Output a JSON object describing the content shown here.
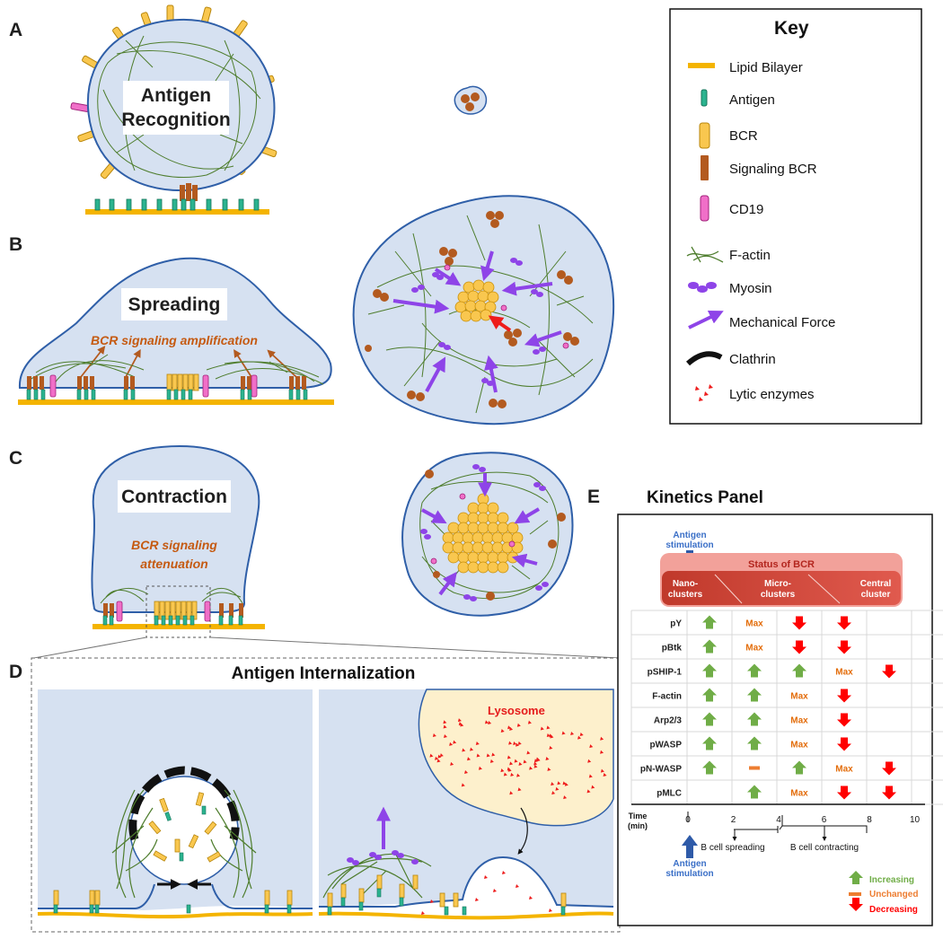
{
  "panels": {
    "a": {
      "letter": "A",
      "title_line1": "Antigen",
      "title_line2": "Recognition"
    },
    "b": {
      "letter": "B",
      "title": "Spreading",
      "subtitle": "BCR signaling amplification"
    },
    "c": {
      "letter": "C",
      "title": "Contraction",
      "subtitle_line1": "BCR signaling",
      "subtitle_line2": "attenuation"
    },
    "d": {
      "letter": "D",
      "title": "Antigen Internalization",
      "lysosome_label": "Lysosome"
    },
    "e": {
      "letter": "E",
      "title": "Kinetics Panel"
    }
  },
  "key": {
    "title": "Key",
    "items": [
      {
        "label": "Lipid Bilayer",
        "icon": "lipid-bilayer-icon"
      },
      {
        "label": "Antigen",
        "icon": "antigen-icon"
      },
      {
        "label": "BCR",
        "icon": "bcr-icon"
      },
      {
        "label": "Signaling BCR",
        "icon": "signaling-bcr-icon"
      },
      {
        "label": "CD19",
        "icon": "cd19-icon"
      },
      {
        "label": "F-actin",
        "icon": "f-actin-icon"
      },
      {
        "label": "Myosin",
        "icon": "myosin-icon"
      },
      {
        "label": "Mechanical Force",
        "icon": "mechanical-force-icon"
      },
      {
        "label": "Clathrin",
        "icon": "clathrin-icon"
      },
      {
        "label": "Lytic enzymes",
        "icon": "lytic-enzymes-icon"
      }
    ]
  },
  "kinetics": {
    "stim_top_line1": "Antigen",
    "stim_top_line2": "stimulation",
    "status_title": "Status of BCR",
    "stage1_line1": "Nano-",
    "stage1_line2": "clusters",
    "stage2_line1": "Micro-",
    "stage2_line2": "clusters",
    "stage3_line1": "Central",
    "stage3_line2": "cluster",
    "rows": [
      {
        "label": "pY",
        "marks": [
          "up",
          "max",
          "down",
          "down",
          "",
          ""
        ]
      },
      {
        "label": "pBtk",
        "marks": [
          "up",
          "max",
          "down",
          "down",
          "",
          ""
        ]
      },
      {
        "label": "pSHIP-1",
        "marks": [
          "up",
          "up",
          "up",
          "max",
          "down",
          ""
        ]
      },
      {
        "label": "F-actin",
        "marks": [
          "up",
          "up",
          "max",
          "down",
          "",
          ""
        ]
      },
      {
        "label": "Arp2/3",
        "marks": [
          "up",
          "up",
          "max",
          "down",
          "",
          ""
        ]
      },
      {
        "label": "pWASP",
        "marks": [
          "up",
          "up",
          "max",
          "down",
          "",
          ""
        ]
      },
      {
        "label": "pN-WASP",
        "marks": [
          "up",
          "dash",
          "up",
          "max",
          "down",
          ""
        ]
      },
      {
        "label": "pMLC",
        "marks": [
          "",
          "up",
          "max",
          "down",
          "down",
          ""
        ]
      }
    ],
    "max_text": "Max",
    "axis_label_line1": "Time",
    "axis_label_line2": "(min)",
    "ticks": [
      "0",
      "2",
      "4",
      "6",
      "8",
      "10"
    ],
    "phase1": "B cell spreading",
    "phase2": "B cell contracting",
    "stim_bottom_line1": "Antigen",
    "stim_bottom_line2": "stimulation",
    "legend": [
      {
        "label": "Increasing",
        "icon": "up-arrow-icon",
        "color": "#70ad47"
      },
      {
        "label": "Unchanged",
        "icon": "dash-icon",
        "color": "#ed7d31"
      },
      {
        "label": "Decreasing",
        "icon": "down-arrow-icon",
        "color": "#ff0000"
      }
    ]
  },
  "colors": {
    "cell_fill": "#d6e1f1",
    "cell_stroke": "#2f5fa8",
    "lipid": "#f4b400",
    "antigen": "#2bb38f",
    "bcr": "#f9c74f",
    "signaling_bcr": "#b35a1f",
    "cd19": "#f06fc8",
    "actin": "#4e7d2d",
    "myosin": "#8e44e8",
    "lysosome": "#fdf0cc",
    "increase": "#70ad47",
    "decrease": "#ff0000",
    "unchanged": "#ed7d31"
  }
}
